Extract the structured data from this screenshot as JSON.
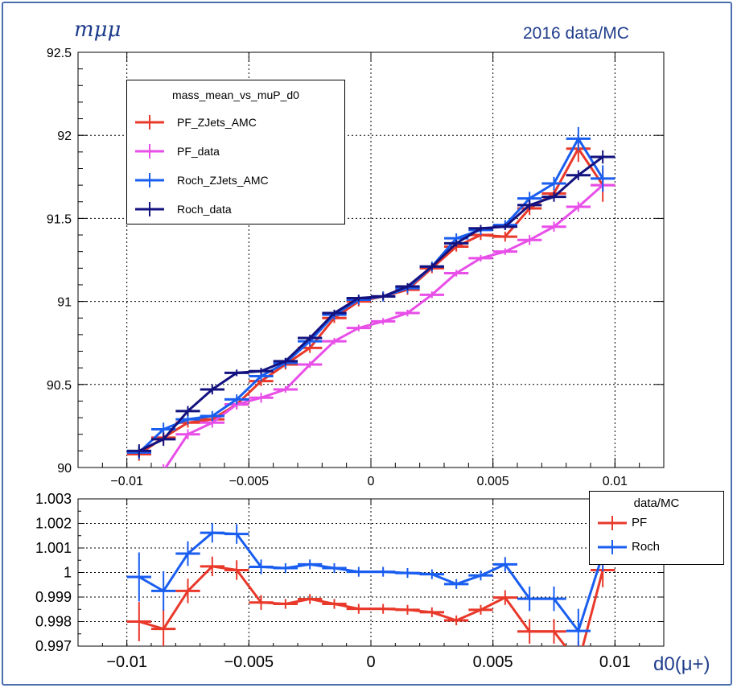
{
  "header": {
    "y_label": "mμμ",
    "title": "2016 data/MC",
    "x_label": "d0(μ+)"
  },
  "colors": {
    "PF_ZJets_AMC": "#e8392b",
    "PF_data": "#e84ee8",
    "Roch_ZJets_AMC": "#1a5ef0",
    "Roch_data": "#13127f",
    "ratio_PF": "#e8392b",
    "ratio_Roch": "#1a5ef0",
    "frame": "#4a6fb0"
  },
  "chart_data": [
    {
      "type": "line",
      "xlim": [
        -0.012,
        0.012
      ],
      "ylim": [
        90,
        92.5
      ],
      "grid": true,
      "x_ticks": [
        "−0.01",
        "−0.005",
        "0",
        "0.005",
        "0.01"
      ],
      "y_ticks": [
        "90",
        "90.5",
        "91",
        "91.5",
        "92",
        "92.5"
      ],
      "legend": {
        "placement": "top-left",
        "title": "mass_mean_vs_muP_d0",
        "entries": [
          "PF_ZJets_AMC",
          "PF_data",
          "Roch_ZJets_AMC",
          "Roch_data"
        ]
      },
      "x": [
        -0.0095,
        -0.0085,
        -0.0075,
        -0.0065,
        -0.0055,
        -0.0045,
        -0.0035,
        -0.0025,
        -0.0015,
        -0.0005,
        0.0005,
        0.0015,
        0.0025,
        0.0035,
        0.0045,
        0.0055,
        0.0065,
        0.0075,
        0.0085,
        0.0095
      ],
      "x_error": 0.0005,
      "series": [
        {
          "name": "PF_ZJets_AMC",
          "values": [
            90.08,
            90.18,
            90.27,
            90.29,
            90.38,
            90.52,
            90.62,
            90.72,
            90.9,
            91.0,
            91.03,
            91.07,
            91.2,
            91.33,
            91.4,
            91.39,
            91.56,
            91.65,
            91.92,
            91.7
          ],
          "errors": [
            0.04,
            0.04,
            0.03,
            0.03,
            0.03,
            0.03,
            0.03,
            0.03,
            0.03,
            0.03,
            0.03,
            0.03,
            0.03,
            0.03,
            0.03,
            0.03,
            0.04,
            0.04,
            0.08,
            0.1
          ]
        },
        {
          "name": "PF_data",
          "values": [
            89.8,
            89.98,
            90.2,
            90.27,
            90.38,
            90.42,
            90.47,
            90.62,
            90.76,
            90.84,
            90.88,
            90.93,
            91.04,
            91.17,
            91.26,
            91.3,
            91.37,
            91.45,
            91.57,
            91.7
          ],
          "errors": [
            0.05,
            0.04,
            0.03,
            0.03,
            0.03,
            0.03,
            0.02,
            0.02,
            0.02,
            0.02,
            0.02,
            0.02,
            0.02,
            0.02,
            0.02,
            0.02,
            0.03,
            0.03,
            0.03,
            0.04
          ]
        },
        {
          "name": "Roch_ZJets_AMC",
          "values": [
            90.09,
            90.23,
            90.29,
            90.31,
            90.41,
            90.55,
            90.63,
            90.76,
            90.92,
            91.01,
            91.03,
            91.08,
            91.21,
            91.38,
            91.43,
            91.46,
            91.62,
            91.71,
            91.98,
            91.74
          ],
          "errors": [
            0.04,
            0.04,
            0.03,
            0.03,
            0.03,
            0.03,
            0.03,
            0.03,
            0.03,
            0.03,
            0.03,
            0.03,
            0.03,
            0.03,
            0.03,
            0.03,
            0.04,
            0.04,
            0.07,
            0.08
          ]
        },
        {
          "name": "Roch_data",
          "values": [
            90.1,
            90.17,
            90.34,
            90.47,
            90.57,
            90.58,
            90.64,
            90.78,
            90.93,
            91.02,
            91.03,
            91.09,
            91.21,
            91.35,
            91.44,
            91.45,
            91.58,
            91.63,
            91.76,
            91.87
          ],
          "errors": [
            0.04,
            0.04,
            0.03,
            0.03,
            0.02,
            0.02,
            0.02,
            0.02,
            0.02,
            0.02,
            0.02,
            0.02,
            0.02,
            0.02,
            0.02,
            0.02,
            0.03,
            0.03,
            0.03,
            0.04
          ]
        }
      ]
    },
    {
      "type": "line",
      "xlim": [
        -0.012,
        0.012
      ],
      "ylim": [
        0.997,
        1.003
      ],
      "grid": true,
      "x_ticks": [
        "−0.01",
        "−0.005",
        "0",
        "0.005",
        "0.01"
      ],
      "y_ticks": [
        "0.997",
        "0.998",
        "0.999",
        "1",
        "1.001",
        "1.002",
        "1.003"
      ],
      "legend": {
        "placement": "top-right",
        "title": "data/MC",
        "entries": [
          "PF",
          "Roch"
        ]
      },
      "x": [
        -0.0095,
        -0.0085,
        -0.0075,
        -0.0065,
        -0.0055,
        -0.0045,
        -0.0035,
        -0.0025,
        -0.0015,
        -0.0005,
        0.0005,
        0.0015,
        0.0025,
        0.0035,
        0.0045,
        0.0055,
        0.0065,
        0.0075,
        0.0085,
        0.0095
      ],
      "x_error": 0.0005,
      "series": [
        {
          "name": "PF",
          "values": [
            0.998,
            0.9977,
            0.99925,
            1.00025,
            1.0001,
            0.99878,
            0.99872,
            0.99892,
            0.99872,
            0.99852,
            0.99852,
            0.99848,
            0.99838,
            0.99805,
            0.99848,
            0.99898,
            0.9976,
            0.9976,
            0.9963,
            1.0001
          ],
          "errors": [
            0.0008,
            0.0008,
            0.0005,
            0.0004,
            0.0004,
            0.0003,
            0.0002,
            0.0002,
            0.0002,
            0.0002,
            0.0002,
            0.0002,
            0.0002,
            0.0002,
            0.0002,
            0.0003,
            0.0005,
            0.0005,
            0.0009,
            0.0007
          ]
        },
        {
          "name": "Roch",
          "values": [
            0.99982,
            0.99925,
            1.00077,
            1.00162,
            1.00157,
            1.00023,
            1.00018,
            1.00033,
            1.00018,
            1.00003,
            1.00003,
            0.99998,
            0.99993,
            0.99953,
            0.99988,
            1.00033,
            0.99893,
            0.99893,
            0.99762,
            1.00075
          ],
          "errors": [
            0.001,
            0.0008,
            0.0005,
            0.0004,
            0.0004,
            0.0003,
            0.0002,
            0.0002,
            0.0002,
            0.0002,
            0.0002,
            0.0002,
            0.0002,
            0.0002,
            0.0002,
            0.0003,
            0.0005,
            0.0005,
            0.0009,
            0.0007
          ]
        }
      ]
    }
  ]
}
